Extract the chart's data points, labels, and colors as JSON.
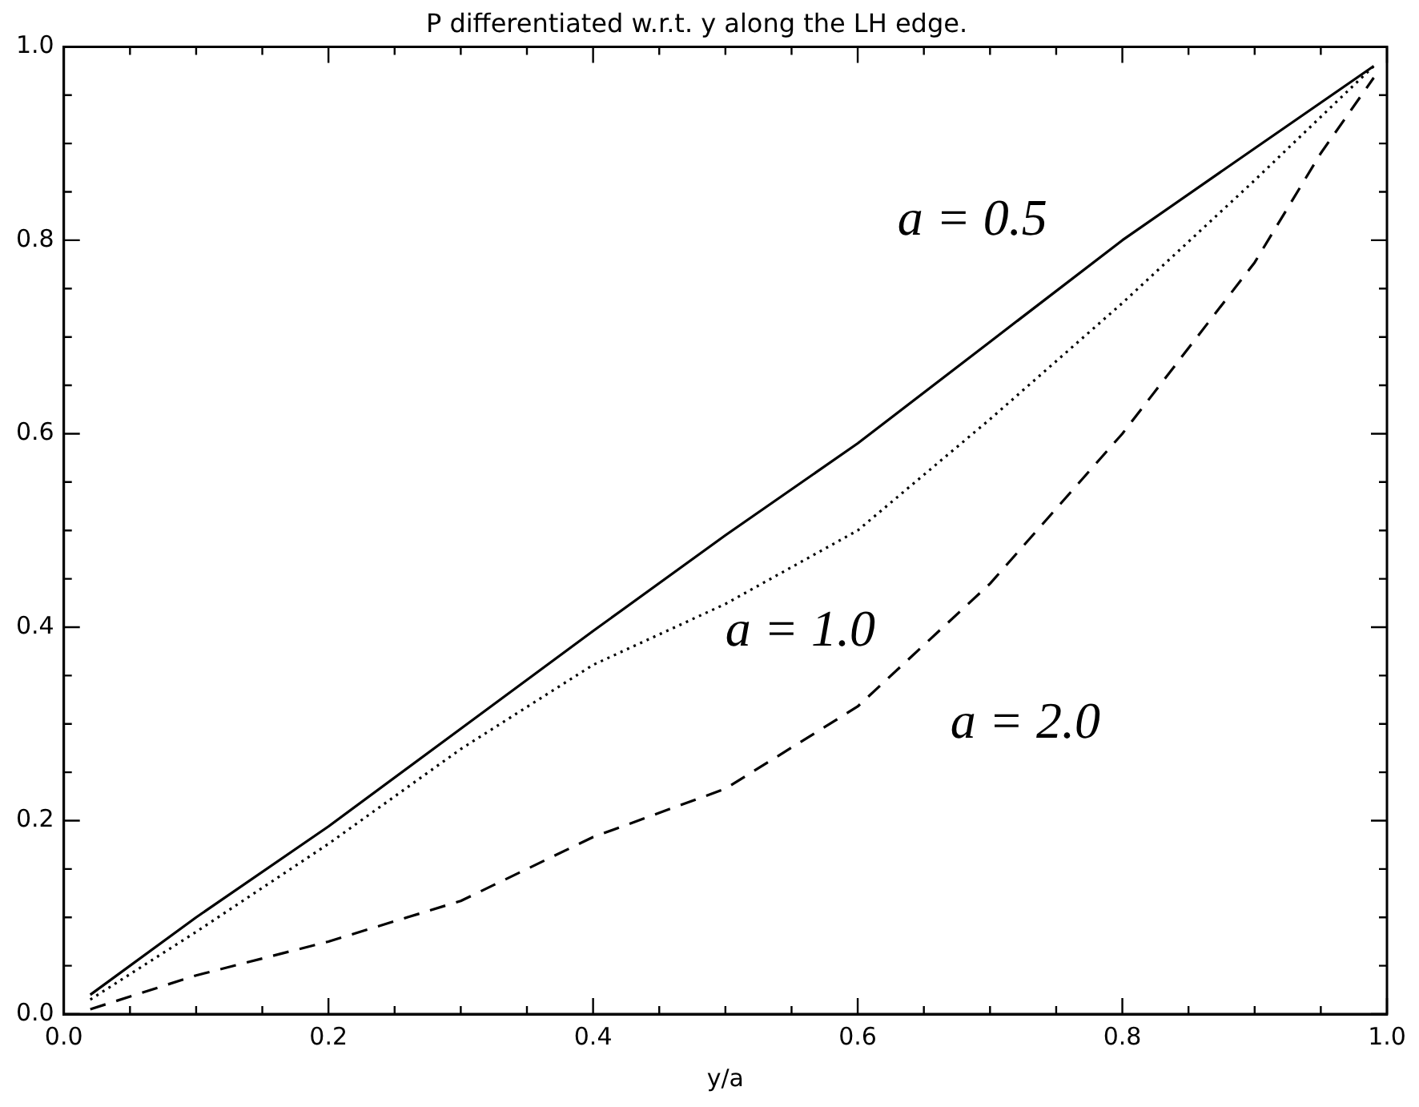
{
  "chart_data": {
    "type": "line",
    "title": "P differentiated w.r.t. y along the LH edge.",
    "xlabel": "y/a",
    "series": [
      {
        "name": "a = 0.5",
        "color": "#000000",
        "line_style": "solid",
        "x": [
          0.02,
          0.1,
          0.2,
          0.3,
          0.4,
          0.5,
          0.6,
          0.7,
          0.8,
          0.9,
          0.99
        ],
        "values": [
          0.02,
          0.1,
          0.194,
          0.295,
          0.396,
          0.495,
          0.59,
          0.695,
          0.8,
          0.895,
          0.98
        ]
      },
      {
        "name": "a = 1.0",
        "color": "#000000",
        "line_style": "dotted",
        "x": [
          0.02,
          0.1,
          0.2,
          0.3,
          0.4,
          0.5,
          0.6,
          0.7,
          0.8,
          0.9,
          0.99
        ],
        "values": [
          0.015,
          0.085,
          0.176,
          0.274,
          0.361,
          0.424,
          0.5,
          0.615,
          0.735,
          0.862,
          0.98
        ]
      },
      {
        "name": "a = 2.0",
        "color": "#000000",
        "line_style": "dashed",
        "x": [
          0.02,
          0.1,
          0.2,
          0.3,
          0.4,
          0.5,
          0.6,
          0.7,
          0.8,
          0.9,
          0.95,
          0.99
        ],
        "values": [
          0.005,
          0.04,
          0.075,
          0.117,
          0.183,
          0.233,
          0.318,
          0.445,
          0.6,
          0.777,
          0.89,
          0.968
        ]
      }
    ],
    "xlim": [
      0,
      1
    ],
    "ylim": [
      0,
      1
    ],
    "xticks": [
      {
        "value": 0,
        "label": "0.0"
      },
      {
        "value": 0.05,
        "label": null
      },
      {
        "value": 0.1,
        "label": null
      },
      {
        "value": 0.15,
        "label": null
      },
      {
        "value": 0.2,
        "label": "0.2"
      },
      {
        "value": 0.25,
        "label": null
      },
      {
        "value": 0.3,
        "label": null
      },
      {
        "value": 0.35,
        "label": null
      },
      {
        "value": 0.4,
        "label": "0.4"
      },
      {
        "value": 0.45,
        "label": null
      },
      {
        "value": 0.5,
        "label": null
      },
      {
        "value": 0.55,
        "label": null
      },
      {
        "value": 0.6,
        "label": "0.6"
      },
      {
        "value": 0.65,
        "label": null
      },
      {
        "value": 0.7,
        "label": null
      },
      {
        "value": 0.75,
        "label": null
      },
      {
        "value": 0.8,
        "label": "0.8"
      },
      {
        "value": 0.85,
        "label": null
      },
      {
        "value": 0.9,
        "label": null
      },
      {
        "value": 0.95,
        "label": null
      },
      {
        "value": 1,
        "label": "1.0"
      }
    ],
    "yticks": [
      {
        "value": 0,
        "label": "0.0"
      },
      {
        "value": 0.05,
        "label": null
      },
      {
        "value": 0.1,
        "label": null
      },
      {
        "value": 0.15,
        "label": null
      },
      {
        "value": 0.2,
        "label": "0.2"
      },
      {
        "value": 0.25,
        "label": null
      },
      {
        "value": 0.3,
        "label": null
      },
      {
        "value": 0.35,
        "label": null
      },
      {
        "value": 0.4,
        "label": "0.4"
      },
      {
        "value": 0.45,
        "label": null
      },
      {
        "value": 0.5,
        "label": null
      },
      {
        "value": 0.55,
        "label": null
      },
      {
        "value": 0.6,
        "label": "0.6"
      },
      {
        "value": 0.65,
        "label": null
      },
      {
        "value": 0.7,
        "label": null
      },
      {
        "value": 0.75,
        "label": null
      },
      {
        "value": 0.8,
        "label": "0.8"
      },
      {
        "value": 0.85,
        "label": null
      },
      {
        "value": 0.9,
        "label": null
      },
      {
        "value": 0.95,
        "label": null
      },
      {
        "value": 1,
        "label": "1.0"
      }
    ],
    "grid": false,
    "legend": false,
    "marker": "none"
  }
}
